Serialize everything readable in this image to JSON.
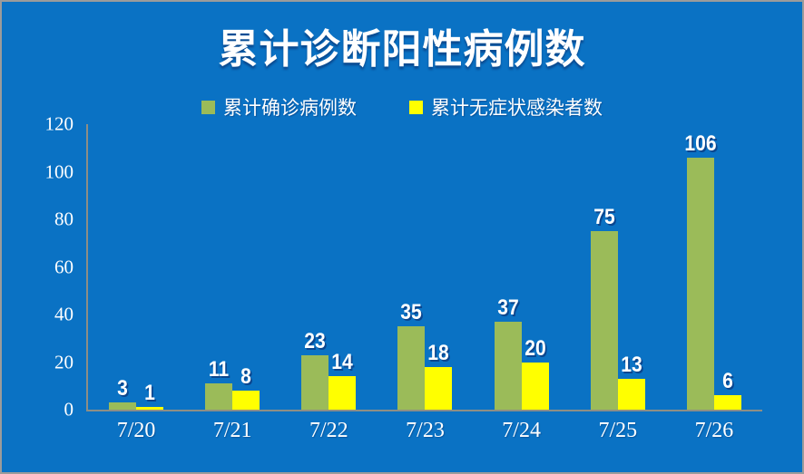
{
  "title": "累计诊断阳性病例数",
  "legend": [
    {
      "label": "累计确诊病例数",
      "color": "#9BBB59"
    },
    {
      "label": "累计无症状感染者数",
      "color": "#FFFF00"
    }
  ],
  "colors": {
    "background": "#0A72C4",
    "axis_line": "#8E8E85",
    "text": "#FFFFFF",
    "frame_border": "#9B9B9B",
    "series_confirmed": "#9BBB59",
    "series_asymptomatic": "#FFFF00"
  },
  "chart_data": {
    "type": "bar",
    "title": "累计诊断阳性病例数",
    "categories": [
      "7/20",
      "7/21",
      "7/22",
      "7/23",
      "7/24",
      "7/25",
      "7/26"
    ],
    "series": [
      {
        "name": "累计确诊病例数",
        "color": "#9BBB59",
        "values": [
          3,
          11,
          23,
          35,
          37,
          75,
          106
        ]
      },
      {
        "name": "累计无症状感染者数",
        "color": "#FFFF00",
        "values": [
          1,
          8,
          14,
          18,
          20,
          13,
          6
        ]
      }
    ],
    "xlabel": "",
    "ylabel": "",
    "ylim": [
      0,
      120
    ],
    "yticks": [
      0,
      20,
      40,
      60,
      80,
      100,
      120
    ],
    "grid": false,
    "legend_position": "top",
    "data_labels": true
  }
}
